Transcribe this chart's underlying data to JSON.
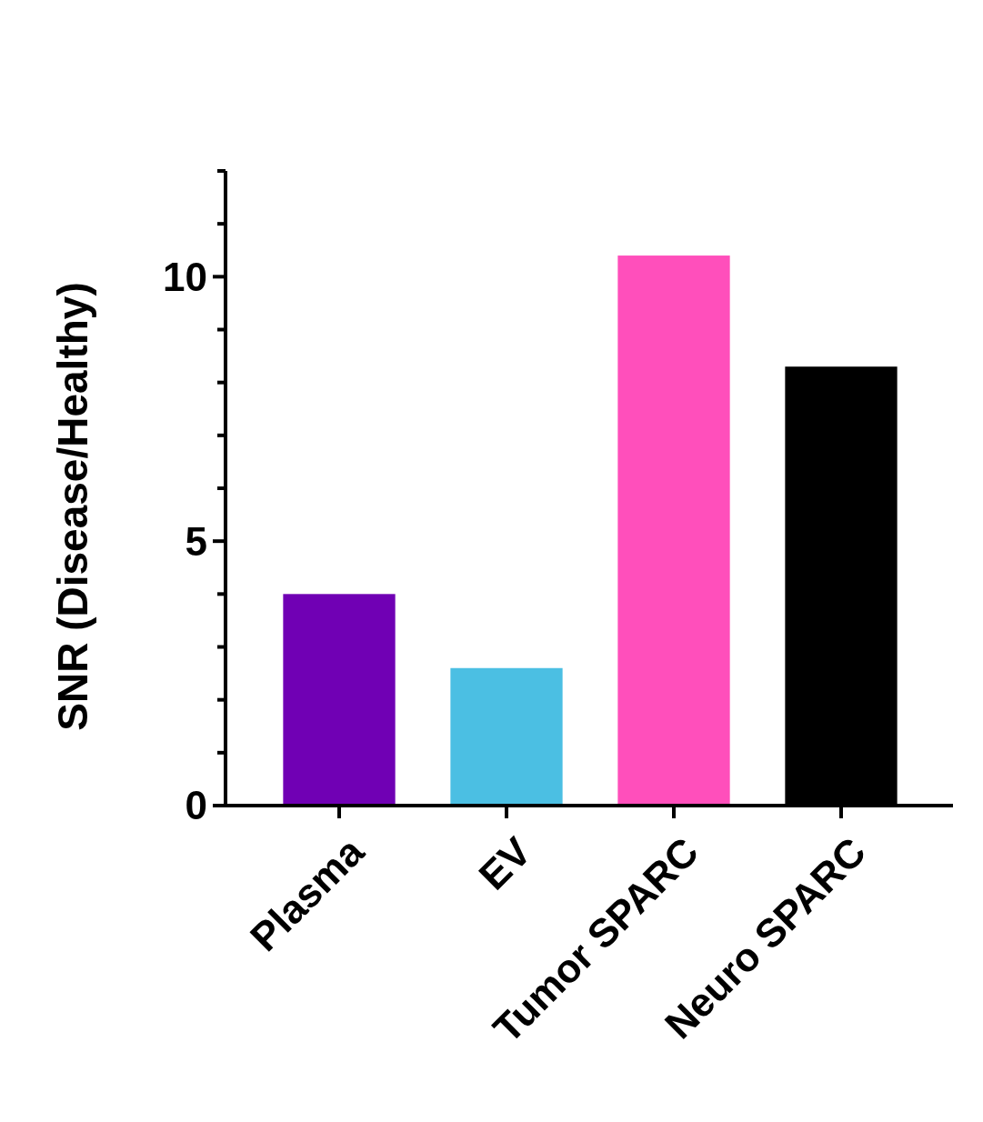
{
  "chart_data": {
    "type": "bar",
    "ylabel": "SNR (Disease/Healthy)",
    "categories": [
      "Plasma",
      "EV",
      "Tumor SPARC",
      "Neuro SPARC"
    ],
    "values": [
      4.0,
      2.6,
      10.4,
      8.3
    ],
    "colors": [
      "#7000b4",
      "#4bbfe3",
      "#ff4fbb",
      "#000000"
    ],
    "ylim": [
      0,
      12
    ],
    "yticks": [
      0,
      {
        "value": 1,
        "label": null
      },
      {
        "value": 2,
        "label": null
      },
      {
        "value": 3,
        "label": null
      },
      {
        "value": 4,
        "label": null
      },
      5,
      {
        "value": 6,
        "label": null
      },
      {
        "value": 7,
        "label": null
      },
      {
        "value": 8,
        "label": null
      },
      {
        "value": 9,
        "label": null
      },
      10,
      {
        "value": 11,
        "label": null
      },
      {
        "value": 12,
        "label": null
      }
    ],
    "grid": false
  }
}
